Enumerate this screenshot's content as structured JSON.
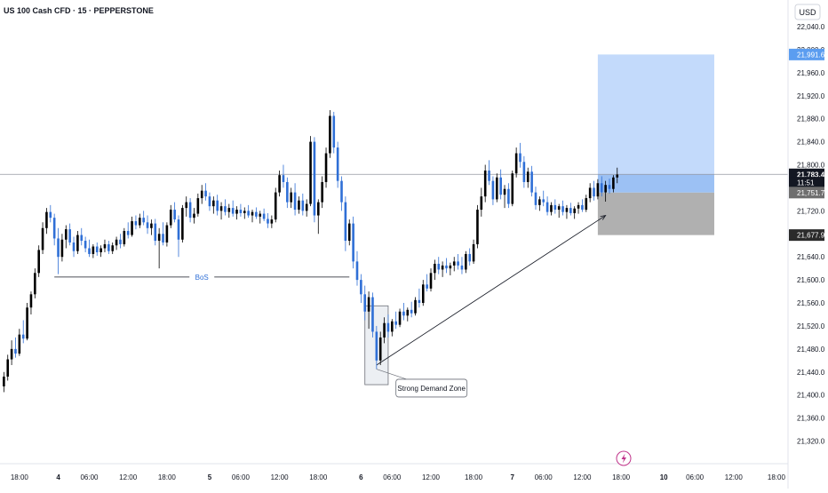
{
  "header": {
    "title": "US 100 Cash CFD · 15 · PEPPERSTONE",
    "currency": "USD"
  },
  "colors": {
    "candle_up": "#000000",
    "candle_down": "#2f6fd6",
    "long_target_zone": "#c3dafb",
    "entry_zone": "#9cc1f4",
    "stop_zone": "#b0b0b0",
    "current_price_label_bg": "#131722",
    "target_label_bg": "#5b9df0",
    "entry_label_bg": "#6f6f6f",
    "stop_label_bg": "#2b2b2b"
  },
  "chart_data": {
    "type": "candlestick",
    "title": "US 100 Cash CFD · 15 · PEPPERSTONE",
    "ylim": [
      21300,
      22040
    ],
    "x_range": [
      -1,
      202
    ],
    "y_ticks": [
      "22,040.0",
      "22,000.0",
      "21,960.0",
      "21,920.0",
      "21,880.0",
      "21,840.0",
      "21,800.0",
      "21,760.0",
      "21,720.0",
      "21,680.0",
      "21,640.0",
      "21,600.0",
      "21,560.0",
      "21,520.0",
      "21,480.0",
      "21,440.0",
      "21,400.0",
      "21,360.0",
      "21,320.0"
    ],
    "y_tick_values": [
      22040,
      22000,
      21960,
      21920,
      21880,
      21840,
      21800,
      21760,
      21720,
      21680,
      21640,
      21600,
      21560,
      21520,
      21480,
      21440,
      21400,
      21360,
      21320
    ],
    "x_ticks": [
      {
        "label": "18:00",
        "pos": 4
      },
      {
        "label": "4",
        "pos": 14
      },
      {
        "label": "06:00",
        "pos": 22
      },
      {
        "label": "12:00",
        "pos": 32
      },
      {
        "label": "18:00",
        "pos": 42
      },
      {
        "label": "5",
        "pos": 53
      },
      {
        "label": "06:00",
        "pos": 61
      },
      {
        "label": "12:00",
        "pos": 71
      },
      {
        "label": "18:00",
        "pos": 81
      },
      {
        "label": "6",
        "pos": 92
      },
      {
        "label": "06:00",
        "pos": 100
      },
      {
        "label": "12:00",
        "pos": 110
      },
      {
        "label": "18:00",
        "pos": 121
      },
      {
        "label": "7",
        "pos": 131
      },
      {
        "label": "06:00",
        "pos": 139
      },
      {
        "label": "12:00",
        "pos": 149
      },
      {
        "label": "18:00",
        "pos": 159
      },
      {
        "label": "10",
        "pos": 170
      },
      {
        "label": "06:00",
        "pos": 178
      },
      {
        "label": "12:00",
        "pos": 188
      },
      {
        "label": "18:00",
        "pos": 199
      }
    ],
    "price_labels": [
      {
        "text": "21,991.6",
        "value": 21991.6,
        "kind": "target"
      },
      {
        "text": "21,783.4",
        "value": 21783.4,
        "kind": "current"
      },
      {
        "text": "11:51",
        "value": 21769,
        "kind": "countdown"
      },
      {
        "text": "21,751.7",
        "value": 21751.7,
        "kind": "entry"
      },
      {
        "text": "21,677.9",
        "value": 21677.9,
        "kind": "stop"
      }
    ],
    "current_price": 21783.4,
    "annotations": [
      {
        "text": "BoS",
        "x_start": 13,
        "x_end": 89,
        "y": 21605
      },
      {
        "text": "Strong Demand Zone",
        "x_anchor": 96,
        "y_anchor": 21445,
        "label_x": 101,
        "label_y": 21412
      }
    ],
    "demand_zone": {
      "x_start": 93,
      "x_end": 99,
      "y_low": 21418,
      "y_high": 21555
    },
    "trend_line": {
      "x1": 96,
      "y1": 21452,
      "x2": 155,
      "y2": 21712
    },
    "position_zones": {
      "x_start": 153,
      "x_end": 183,
      "target": 21991.6,
      "entry": 21783.4,
      "mid": 21751.7,
      "stop": 21677.9
    },
    "candles": [
      {
        "o": 21415,
        "h": 21440,
        "l": 21405,
        "c": 21432
      },
      {
        "o": 21432,
        "h": 21470,
        "l": 21425,
        "c": 21462
      },
      {
        "o": 21462,
        "h": 21495,
        "l": 21452,
        "c": 21480
      },
      {
        "o": 21480,
        "h": 21500,
        "l": 21465,
        "c": 21472
      },
      {
        "o": 21472,
        "h": 21515,
        "l": 21468,
        "c": 21505
      },
      {
        "o": 21505,
        "h": 21530,
        "l": 21490,
        "c": 21498
      },
      {
        "o": 21498,
        "h": 21560,
        "l": 21495,
        "c": 21552
      },
      {
        "o": 21552,
        "h": 21580,
        "l": 21540,
        "c": 21575
      },
      {
        "o": 21575,
        "h": 21620,
        "l": 21568,
        "c": 21612
      },
      {
        "o": 21612,
        "h": 21660,
        "l": 21605,
        "c": 21652
      },
      {
        "o": 21652,
        "h": 21700,
        "l": 21645,
        "c": 21690
      },
      {
        "o": 21690,
        "h": 21725,
        "l": 21680,
        "c": 21718
      },
      {
        "o": 21718,
        "h": 21730,
        "l": 21700,
        "c": 21708
      },
      {
        "o": 21708,
        "h": 21715,
        "l": 21660,
        "c": 21672
      },
      {
        "o": 21672,
        "h": 21690,
        "l": 21610,
        "c": 21640
      },
      {
        "o": 21640,
        "h": 21680,
        "l": 21632,
        "c": 21670
      },
      {
        "o": 21670,
        "h": 21695,
        "l": 21655,
        "c": 21688
      },
      {
        "o": 21688,
        "h": 21698,
        "l": 21660,
        "c": 21665
      },
      {
        "o": 21665,
        "h": 21675,
        "l": 21640,
        "c": 21650
      },
      {
        "o": 21650,
        "h": 21685,
        "l": 21645,
        "c": 21678
      },
      {
        "o": 21678,
        "h": 21690,
        "l": 21660,
        "c": 21668
      },
      {
        "o": 21668,
        "h": 21675,
        "l": 21648,
        "c": 21655
      },
      {
        "o": 21655,
        "h": 21670,
        "l": 21640,
        "c": 21645
      },
      {
        "o": 21645,
        "h": 21662,
        "l": 21638,
        "c": 21658
      },
      {
        "o": 21658,
        "h": 21665,
        "l": 21642,
        "c": 21648
      },
      {
        "o": 21648,
        "h": 21660,
        "l": 21640,
        "c": 21655
      },
      {
        "o": 21655,
        "h": 21670,
        "l": 21648,
        "c": 21662
      },
      {
        "o": 21662,
        "h": 21668,
        "l": 21645,
        "c": 21650
      },
      {
        "o": 21650,
        "h": 21665,
        "l": 21645,
        "c": 21660
      },
      {
        "o": 21660,
        "h": 21675,
        "l": 21652,
        "c": 21670
      },
      {
        "o": 21670,
        "h": 21680,
        "l": 21655,
        "c": 21662
      },
      {
        "o": 21662,
        "h": 21690,
        "l": 21658,
        "c": 21685
      },
      {
        "o": 21685,
        "h": 21700,
        "l": 21672,
        "c": 21678
      },
      {
        "o": 21678,
        "h": 21710,
        "l": 21675,
        "c": 21702
      },
      {
        "o": 21702,
        "h": 21712,
        "l": 21688,
        "c": 21695
      },
      {
        "o": 21695,
        "h": 21715,
        "l": 21690,
        "c": 21708
      },
      {
        "o": 21708,
        "h": 21720,
        "l": 21695,
        "c": 21700
      },
      {
        "o": 21700,
        "h": 21712,
        "l": 21680,
        "c": 21690
      },
      {
        "o": 21690,
        "h": 21705,
        "l": 21678,
        "c": 21698
      },
      {
        "o": 21698,
        "h": 21706,
        "l": 21660,
        "c": 21668
      },
      {
        "o": 21668,
        "h": 21690,
        "l": 21620,
        "c": 21680
      },
      {
        "o": 21680,
        "h": 21700,
        "l": 21660,
        "c": 21665
      },
      {
        "o": 21665,
        "h": 21700,
        "l": 21658,
        "c": 21695
      },
      {
        "o": 21695,
        "h": 21730,
        "l": 21690,
        "c": 21722
      },
      {
        "o": 21722,
        "h": 21735,
        "l": 21700,
        "c": 21705
      },
      {
        "o": 21705,
        "h": 21712,
        "l": 21640,
        "c": 21670
      },
      {
        "o": 21670,
        "h": 21730,
        "l": 21665,
        "c": 21725
      },
      {
        "o": 21725,
        "h": 21745,
        "l": 21710,
        "c": 21735
      },
      {
        "o": 21735,
        "h": 21742,
        "l": 21700,
        "c": 21708
      },
      {
        "o": 21708,
        "h": 21725,
        "l": 21698,
        "c": 21715
      },
      {
        "o": 21715,
        "h": 21750,
        "l": 21710,
        "c": 21742
      },
      {
        "o": 21742,
        "h": 21765,
        "l": 21732,
        "c": 21755
      },
      {
        "o": 21755,
        "h": 21768,
        "l": 21738,
        "c": 21745
      },
      {
        "o": 21745,
        "h": 21752,
        "l": 21720,
        "c": 21728
      },
      {
        "o": 21728,
        "h": 21745,
        "l": 21715,
        "c": 21738
      },
      {
        "o": 21738,
        "h": 21748,
        "l": 21712,
        "c": 21720
      },
      {
        "o": 21720,
        "h": 21735,
        "l": 21705,
        "c": 21728
      },
      {
        "o": 21728,
        "h": 21740,
        "l": 21712,
        "c": 21718
      },
      {
        "o": 21718,
        "h": 21732,
        "l": 21708,
        "c": 21725
      },
      {
        "o": 21725,
        "h": 21738,
        "l": 21710,
        "c": 21715
      },
      {
        "o": 21715,
        "h": 21728,
        "l": 21705,
        "c": 21722
      },
      {
        "o": 21722,
        "h": 21732,
        "l": 21710,
        "c": 21716
      },
      {
        "o": 21716,
        "h": 21726,
        "l": 21706,
        "c": 21720
      },
      {
        "o": 21720,
        "h": 21730,
        "l": 21708,
        "c": 21712
      },
      {
        "o": 21712,
        "h": 21722,
        "l": 21700,
        "c": 21718
      },
      {
        "o": 21718,
        "h": 21726,
        "l": 21706,
        "c": 21710
      },
      {
        "o": 21710,
        "h": 21720,
        "l": 21698,
        "c": 21715
      },
      {
        "o": 21715,
        "h": 21724,
        "l": 21702,
        "c": 21706
      },
      {
        "o": 21706,
        "h": 21716,
        "l": 21690,
        "c": 21698
      },
      {
        "o": 21698,
        "h": 21712,
        "l": 21690,
        "c": 21705
      },
      {
        "o": 21705,
        "h": 21760,
        "l": 21700,
        "c": 21752
      },
      {
        "o": 21752,
        "h": 21790,
        "l": 21745,
        "c": 21782
      },
      {
        "o": 21782,
        "h": 21800,
        "l": 21760,
        "c": 21770
      },
      {
        "o": 21770,
        "h": 21778,
        "l": 21725,
        "c": 21735
      },
      {
        "o": 21735,
        "h": 21760,
        "l": 21725,
        "c": 21752
      },
      {
        "o": 21752,
        "h": 21768,
        "l": 21712,
        "c": 21722
      },
      {
        "o": 21722,
        "h": 21745,
        "l": 21715,
        "c": 21738
      },
      {
        "o": 21738,
        "h": 21750,
        "l": 21712,
        "c": 21720
      },
      {
        "o": 21720,
        "h": 21740,
        "l": 21710,
        "c": 21732
      },
      {
        "o": 21732,
        "h": 21850,
        "l": 21728,
        "c": 21840
      },
      {
        "o": 21840,
        "h": 21848,
        "l": 21700,
        "c": 21712
      },
      {
        "o": 21712,
        "h": 21740,
        "l": 21680,
        "c": 21735
      },
      {
        "o": 21735,
        "h": 21780,
        "l": 21725,
        "c": 21770
      },
      {
        "o": 21770,
        "h": 21830,
        "l": 21760,
        "c": 21820
      },
      {
        "o": 21820,
        "h": 21895,
        "l": 21812,
        "c": 21885
      },
      {
        "o": 21885,
        "h": 21892,
        "l": 21820,
        "c": 21830
      },
      {
        "o": 21830,
        "h": 21840,
        "l": 21760,
        "c": 21772
      },
      {
        "o": 21772,
        "h": 21780,
        "l": 21720,
        "c": 21735
      },
      {
        "o": 21735,
        "h": 21745,
        "l": 21650,
        "c": 21668
      },
      {
        "o": 21668,
        "h": 21705,
        "l": 21660,
        "c": 21698
      },
      {
        "o": 21698,
        "h": 21710,
        "l": 21620,
        "c": 21632
      },
      {
        "o": 21632,
        "h": 21650,
        "l": 21590,
        "c": 21600
      },
      {
        "o": 21600,
        "h": 21610,
        "l": 21560,
        "c": 21575
      },
      {
        "o": 21575,
        "h": 21590,
        "l": 21530,
        "c": 21545
      },
      {
        "o": 21545,
        "h": 21580,
        "l": 21515,
        "c": 21570
      },
      {
        "o": 21570,
        "h": 21578,
        "l": 21500,
        "c": 21510
      },
      {
        "o": 21510,
        "h": 21520,
        "l": 21445,
        "c": 21460
      },
      {
        "o": 21460,
        "h": 21510,
        "l": 21452,
        "c": 21500
      },
      {
        "o": 21500,
        "h": 21535,
        "l": 21490,
        "c": 21525
      },
      {
        "o": 21525,
        "h": 21540,
        "l": 21500,
        "c": 21510
      },
      {
        "o": 21510,
        "h": 21532,
        "l": 21502,
        "c": 21528
      },
      {
        "o": 21528,
        "h": 21545,
        "l": 21515,
        "c": 21522
      },
      {
        "o": 21522,
        "h": 21550,
        "l": 21518,
        "c": 21545
      },
      {
        "o": 21545,
        "h": 21560,
        "l": 21530,
        "c": 21538
      },
      {
        "o": 21538,
        "h": 21552,
        "l": 21528,
        "c": 21548
      },
      {
        "o": 21548,
        "h": 21562,
        "l": 21535,
        "c": 21542
      },
      {
        "o": 21542,
        "h": 21570,
        "l": 21538,
        "c": 21565
      },
      {
        "o": 21565,
        "h": 21585,
        "l": 21552,
        "c": 21560
      },
      {
        "o": 21560,
        "h": 21600,
        "l": 21555,
        "c": 21592
      },
      {
        "o": 21592,
        "h": 21610,
        "l": 21580,
        "c": 21585
      },
      {
        "o": 21585,
        "h": 21620,
        "l": 21580,
        "c": 21612
      },
      {
        "o": 21612,
        "h": 21635,
        "l": 21600,
        "c": 21628
      },
      {
        "o": 21628,
        "h": 21640,
        "l": 21610,
        "c": 21618
      },
      {
        "o": 21618,
        "h": 21632,
        "l": 21605,
        "c": 21625
      },
      {
        "o": 21625,
        "h": 21638,
        "l": 21612,
        "c": 21620
      },
      {
        "o": 21620,
        "h": 21630,
        "l": 21608,
        "c": 21625
      },
      {
        "o": 21625,
        "h": 21640,
        "l": 21615,
        "c": 21632
      },
      {
        "o": 21632,
        "h": 21645,
        "l": 21618,
        "c": 21625
      },
      {
        "o": 21625,
        "h": 21640,
        "l": 21610,
        "c": 21618
      },
      {
        "o": 21618,
        "h": 21650,
        "l": 21612,
        "c": 21645
      },
      {
        "o": 21645,
        "h": 21655,
        "l": 21625,
        "c": 21632
      },
      {
        "o": 21632,
        "h": 21670,
        "l": 21628,
        "c": 21662
      },
      {
        "o": 21662,
        "h": 21730,
        "l": 21655,
        "c": 21722
      },
      {
        "o": 21722,
        "h": 21760,
        "l": 21710,
        "c": 21745
      },
      {
        "o": 21745,
        "h": 21800,
        "l": 21735,
        "c": 21790
      },
      {
        "o": 21790,
        "h": 21808,
        "l": 21765,
        "c": 21772
      },
      {
        "o": 21772,
        "h": 21780,
        "l": 21730,
        "c": 21740
      },
      {
        "o": 21740,
        "h": 21785,
        "l": 21735,
        "c": 21778
      },
      {
        "o": 21778,
        "h": 21792,
        "l": 21740,
        "c": 21748
      },
      {
        "o": 21748,
        "h": 21765,
        "l": 21725,
        "c": 21758
      },
      {
        "o": 21758,
        "h": 21768,
        "l": 21725,
        "c": 21732
      },
      {
        "o": 21732,
        "h": 21790,
        "l": 21728,
        "c": 21785
      },
      {
        "o": 21785,
        "h": 21830,
        "l": 21778,
        "c": 21820
      },
      {
        "o": 21820,
        "h": 21838,
        "l": 21795,
        "c": 21805
      },
      {
        "o": 21805,
        "h": 21815,
        "l": 21760,
        "c": 21770
      },
      {
        "o": 21770,
        "h": 21795,
        "l": 21760,
        "c": 21788
      },
      {
        "o": 21788,
        "h": 21798,
        "l": 21745,
        "c": 21752
      },
      {
        "o": 21752,
        "h": 21762,
        "l": 21722,
        "c": 21730
      },
      {
        "o": 21730,
        "h": 21745,
        "l": 21720,
        "c": 21740
      },
      {
        "o": 21740,
        "h": 21755,
        "l": 21728,
        "c": 21735
      },
      {
        "o": 21735,
        "h": 21745,
        "l": 21712,
        "c": 21718
      },
      {
        "o": 21718,
        "h": 21735,
        "l": 21712,
        "c": 21730
      },
      {
        "o": 21730,
        "h": 21740,
        "l": 21715,
        "c": 21722
      },
      {
        "o": 21722,
        "h": 21732,
        "l": 21708,
        "c": 21728
      },
      {
        "o": 21728,
        "h": 21738,
        "l": 21712,
        "c": 21718
      },
      {
        "o": 21718,
        "h": 21730,
        "l": 21706,
        "c": 21725
      },
      {
        "o": 21725,
        "h": 21734,
        "l": 21712,
        "c": 21716
      },
      {
        "o": 21716,
        "h": 21728,
        "l": 21706,
        "c": 21724
      },
      {
        "o": 21724,
        "h": 21735,
        "l": 21715,
        "c": 21730
      },
      {
        "o": 21730,
        "h": 21740,
        "l": 21718,
        "c": 21722
      },
      {
        "o": 21722,
        "h": 21748,
        "l": 21718,
        "c": 21742
      },
      {
        "o": 21742,
        "h": 21768,
        "l": 21735,
        "c": 21760
      },
      {
        "o": 21760,
        "h": 21772,
        "l": 21738,
        "c": 21745
      },
      {
        "o": 21745,
        "h": 21775,
        "l": 21740,
        "c": 21768
      },
      {
        "o": 21768,
        "h": 21780,
        "l": 21745,
        "c": 21752
      },
      {
        "o": 21752,
        "h": 21772,
        "l": 21736,
        "c": 21765
      },
      {
        "o": 21765,
        "h": 21776,
        "l": 21750,
        "c": 21758
      },
      {
        "o": 21758,
        "h": 21782,
        "l": 21752,
        "c": 21778
      },
      {
        "o": 21778,
        "h": 21795,
        "l": 21768,
        "c": 21783
      }
    ]
  }
}
